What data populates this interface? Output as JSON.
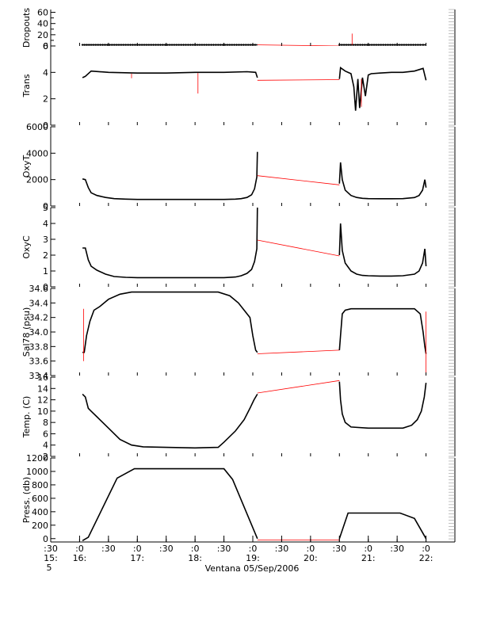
{
  "chart_data": {
    "type": "line",
    "xlabel": "Ventana 05/Sep/2006",
    "x_tick_labels": [
      {
        "t": 15.5,
        "top": ":30",
        "bottom": "15:"
      },
      {
        "t": 16.0,
        "top": ":0",
        "bottom": "16:"
      },
      {
        "t": 16.5,
        "top": ":30",
        "bottom": ""
      },
      {
        "t": 17.0,
        "top": ":0",
        "bottom": "17:"
      },
      {
        "t": 17.5,
        "top": ":30",
        "bottom": ""
      },
      {
        "t": 18.0,
        "top": ":0",
        "bottom": "18:"
      },
      {
        "t": 18.5,
        "top": ":30",
        "bottom": ""
      },
      {
        "t": 19.0,
        "top": ":0",
        "bottom": "19:"
      },
      {
        "t": 19.5,
        "top": ":30",
        "bottom": ""
      },
      {
        "t": 20.0,
        "top": ":0",
        "bottom": "20:"
      },
      {
        "t": 20.5,
        "top": ":30",
        "bottom": ""
      },
      {
        "t": 21.0,
        "top": ":0",
        "bottom": "21:"
      },
      {
        "t": 21.5,
        "top": ":30",
        "bottom": ""
      },
      {
        "t": 22.0,
        "top": ":0",
        "bottom": "22:"
      }
    ],
    "x_extra_label": "5",
    "xlim": [
      15.5,
      22.5
    ],
    "panels": [
      {
        "ylabel": "Dropouts",
        "ylim": [
          0,
          65
        ],
        "yticks": [
          0,
          20,
          40,
          60
        ],
        "ytick_labels": [
          "0",
          "20",
          "40",
          "60"
        ],
        "ytick_minor": [
          10,
          30,
          50
        ],
        "ytick_minor_labels": [
          "",
          "",
          ""
        ],
        "series": [
          {
            "color": "#000000",
            "markers": true,
            "x": [
              16.05,
              16.2,
              16.4,
              16.6,
              16.8,
              17.0,
              17.2,
              17.4,
              17.6,
              17.8,
              18.0,
              18.2,
              18.4,
              18.6,
              18.8,
              19.0,
              19.08
            ],
            "y": [
              2,
              2,
              2,
              2,
              2,
              2,
              2,
              2,
              2,
              2,
              2,
              2,
              2,
              2,
              2,
              2,
              2
            ]
          },
          {
            "color": "#000000",
            "markers": true,
            "x": [
              20.5,
              20.7,
              20.9,
              21.1,
              21.3,
              21.5,
              21.7,
              21.9,
              22.0
            ],
            "y": [
              2,
              2,
              2,
              2,
              2,
              2,
              2,
              2,
              2
            ]
          },
          {
            "color": "#ff0000",
            "markers": false,
            "x": [
              19.08,
              20.5
            ],
            "y": [
              2,
              0
            ]
          },
          {
            "color": "#ff0000",
            "markers": false,
            "x": [
              20.72,
              20.72
            ],
            "y": [
              2,
              22
            ]
          }
        ]
      },
      {
        "ylabel": "Trans",
        "ylim": [
          0,
          6
        ],
        "yticks": [
          0,
          2,
          4,
          6
        ],
        "ytick_labels": [
          "0",
          "2",
          "4",
          "6"
        ],
        "series": [
          {
            "color": "#000000",
            "markers": false,
            "x": [
              16.05,
              16.1,
              16.2,
              16.5,
              17.0,
              17.5,
              18.0,
              18.5,
              18.9,
              19.05,
              19.08
            ],
            "y": [
              3.6,
              3.7,
              4.1,
              4.0,
              3.95,
              3.95,
              4.0,
              4.0,
              4.05,
              4.0,
              3.6
            ]
          },
          {
            "color": "#ff0000",
            "markers": false,
            "x": [
              16.9,
              16.9
            ],
            "y": [
              3.9,
              3.55
            ]
          },
          {
            "color": "#ff0000",
            "markers": false,
            "x": [
              18.05,
              18.05
            ],
            "y": [
              3.95,
              2.4
            ]
          },
          {
            "color": "#ff0000",
            "markers": false,
            "x": [
              19.08,
              20.5
            ],
            "y": [
              3.4,
              3.45
            ]
          },
          {
            "color": "#000000",
            "markers": false,
            "x": [
              20.5,
              20.52,
              20.6,
              20.7,
              20.75,
              20.78,
              20.82,
              20.85,
              20.9,
              20.95,
              21.0,
              21.05,
              21.2,
              21.4,
              21.6,
              21.8,
              21.95,
              22.0
            ],
            "y": [
              3.5,
              4.35,
              4.1,
              3.9,
              2.9,
              1.1,
              3.5,
              1.3,
              3.6,
              2.2,
              3.8,
              3.9,
              3.95,
              4.0,
              4.0,
              4.1,
              4.3,
              3.4
            ]
          },
          {
            "color": "#ff0000",
            "markers": false,
            "x": [
              20.88,
              20.88
            ],
            "y": [
              3.5,
              1.4
            ]
          }
        ]
      },
      {
        "ylabel": "OxyT",
        "ylim": [
          0,
          6000
        ],
        "yticks": [
          0,
          2000,
          4000,
          6000
        ],
        "ytick_labels": [
          "0",
          "2000",
          "4000",
          "6000"
        ],
        "series": [
          {
            "color": "#000000",
            "markers": false,
            "x": [
              16.05,
              16.1,
              16.15,
              16.2,
              16.3,
              16.45,
              16.6,
              16.8,
              17.0,
              17.5,
              18.0,
              18.5,
              18.7,
              18.8,
              18.9,
              18.98,
              19.03,
              19.07,
              19.08
            ],
            "y": [
              2050,
              2000,
              1400,
              1000,
              800,
              650,
              560,
              520,
              500,
              500,
              500,
              500,
              520,
              560,
              650,
              850,
              1300,
              2200,
              4100
            ]
          },
          {
            "color": "#ff0000",
            "markers": false,
            "x": [
              19.08,
              20.5
            ],
            "y": [
              2300,
              1600
            ]
          },
          {
            "color": "#000000",
            "markers": false,
            "x": [
              20.5,
              20.52,
              20.55,
              20.6,
              20.7,
              20.8,
              20.9,
              21.0,
              21.2,
              21.4,
              21.6,
              21.8,
              21.88,
              21.94,
              21.98,
              22.0
            ],
            "y": [
              1700,
              3300,
              2000,
              1200,
              800,
              650,
              580,
              560,
              550,
              550,
              560,
              640,
              800,
              1200,
              2000,
              1400
            ]
          }
        ]
      },
      {
        "ylabel": "OxyC",
        "ylim": [
          0,
          5
        ],
        "yticks": [
          0,
          1,
          2,
          3,
          4,
          5
        ],
        "ytick_labels": [
          "0",
          "1",
          "2",
          "3",
          "4",
          "5"
        ],
        "series": [
          {
            "color": "#000000",
            "markers": false,
            "x": [
              16.05,
              16.1,
              16.15,
              16.2,
              16.3,
              16.45,
              16.6,
              16.8,
              17.0,
              17.5,
              18.0,
              18.5,
              18.7,
              18.8,
              18.9,
              18.98,
              19.03,
              19.07,
              19.08
            ],
            "y": [
              2.45,
              2.45,
              1.7,
              1.3,
              1.05,
              0.8,
              0.65,
              0.6,
              0.58,
              0.58,
              0.58,
              0.58,
              0.62,
              0.7,
              0.85,
              1.1,
              1.6,
              2.4,
              5.0
            ]
          },
          {
            "color": "#ff0000",
            "markers": false,
            "x": [
              19.08,
              20.5
            ],
            "y": [
              2.95,
              1.95
            ]
          },
          {
            "color": "#000000",
            "markers": false,
            "x": [
              20.5,
              20.52,
              20.55,
              20.6,
              20.7,
              20.8,
              20.9,
              21.0,
              21.2,
              21.4,
              21.6,
              21.8,
              21.88,
              21.94,
              21.98,
              22.0
            ],
            "y": [
              2.0,
              4.0,
              2.3,
              1.5,
              1.0,
              0.8,
              0.72,
              0.7,
              0.68,
              0.68,
              0.7,
              0.8,
              1.0,
              1.5,
              2.4,
              1.3
            ]
          }
        ]
      },
      {
        "ylabel": "Sal78 (psu)",
        "ylim": [
          33.4,
          34.6
        ],
        "yticks": [
          33.4,
          33.6,
          33.8,
          34.0,
          34.2,
          34.4,
          34.6
        ],
        "ytick_labels": [
          "33.4",
          "33.6",
          "33.8",
          "34.0",
          "34.2",
          "34.4",
          "34.6"
        ],
        "series": [
          {
            "color": "#000000",
            "markers": false,
            "x": [
              16.05,
              16.08,
              16.12,
              16.18,
              16.25,
              16.35,
              16.5,
              16.7,
              16.9,
              17.2,
              17.6,
              18.0,
              18.4,
              18.6,
              18.75,
              18.85,
              18.95,
              19.0,
              19.05,
              19.08
            ],
            "y": [
              33.72,
              33.72,
              33.95,
              34.15,
              34.3,
              34.35,
              34.45,
              34.52,
              34.55,
              34.55,
              34.55,
              34.55,
              34.55,
              34.5,
              34.4,
              34.3,
              34.2,
              33.95,
              33.75,
              33.72
            ]
          },
          {
            "color": "#ff0000",
            "markers": false,
            "x": [
              16.07,
              16.07
            ],
            "y": [
              33.6,
              34.32
            ]
          },
          {
            "color": "#ff0000",
            "markers": false,
            "x": [
              19.08,
              20.5
            ],
            "y": [
              33.7,
              33.75
            ]
          },
          {
            "color": "#000000",
            "markers": false,
            "x": [
              20.5,
              20.52,
              20.55,
              20.6,
              20.7,
              20.9,
              21.2,
              21.5,
              21.8,
              21.9,
              21.95,
              21.98,
              22.0
            ],
            "y": [
              33.75,
              33.95,
              34.25,
              34.3,
              34.32,
              34.32,
              34.32,
              34.32,
              34.32,
              34.25,
              34.0,
              33.8,
              33.7
            ]
          },
          {
            "color": "#ff0000",
            "markers": false,
            "x": [
              22.0,
              22.0
            ],
            "y": [
              33.4,
              34.28
            ]
          }
        ]
      },
      {
        "ylabel": "Temp. (C)",
        "ylim": [
          2,
          16
        ],
        "yticks": [
          2,
          4,
          6,
          8,
          10,
          12,
          14,
          16
        ],
        "ytick_labels": [
          "2",
          "4",
          "6",
          "8",
          "10",
          "12",
          "14",
          "16"
        ],
        "series": [
          {
            "color": "#000000",
            "markers": false,
            "x": [
              16.05,
              16.1,
              16.15,
              16.2,
              16.3,
              16.5,
              16.7,
              16.9,
              17.1,
              17.5,
              18.0,
              18.4,
              18.5,
              18.7,
              18.85,
              18.95,
              19.02,
              19.08
            ],
            "y": [
              13.0,
              12.5,
              10.5,
              10.0,
              9.0,
              7.0,
              5.0,
              4.0,
              3.7,
              3.6,
              3.5,
              3.6,
              4.5,
              6.5,
              8.5,
              10.5,
              12.0,
              13.0
            ]
          },
          {
            "color": "#ff0000",
            "markers": false,
            "x": [
              19.08,
              20.5
            ],
            "y": [
              13.2,
              15.4
            ]
          },
          {
            "color": "#000000",
            "markers": false,
            "x": [
              20.5,
              20.52,
              20.55,
              20.6,
              20.7,
              21.0,
              21.4,
              21.6,
              21.75,
              21.85,
              21.92,
              21.97,
              22.0
            ],
            "y": [
              15.2,
              12.0,
              9.5,
              8.0,
              7.2,
              7.0,
              7.0,
              7.0,
              7.5,
              8.5,
              10.0,
              12.5,
              15.0
            ]
          }
        ]
      },
      {
        "ylabel": "Press. (db)",
        "ylim": [
          -50,
          1200
        ],
        "yticks": [
          0,
          200,
          400,
          600,
          800,
          1000,
          1200
        ],
        "ytick_labels": [
          "0",
          "200",
          "400",
          "600",
          "800",
          "1000",
          "1200"
        ],
        "series": [
          {
            "color": "#000000",
            "markers": false,
            "x": [
              16.05,
              16.15,
              16.65,
              16.95,
              18.5,
              18.65,
              19.08
            ],
            "y": [
              -30,
              20,
              900,
              1040,
              1040,
              880,
              0
            ]
          },
          {
            "color": "#ff0000",
            "markers": false,
            "x": [
              19.08,
              20.5
            ],
            "y": [
              -20,
              -20
            ]
          },
          {
            "color": "#000000",
            "markers": false,
            "x": [
              20.5,
              20.65,
              21.55,
              21.8,
              22.0
            ],
            "y": [
              0,
              380,
              380,
              300,
              0
            ]
          }
        ]
      }
    ]
  }
}
